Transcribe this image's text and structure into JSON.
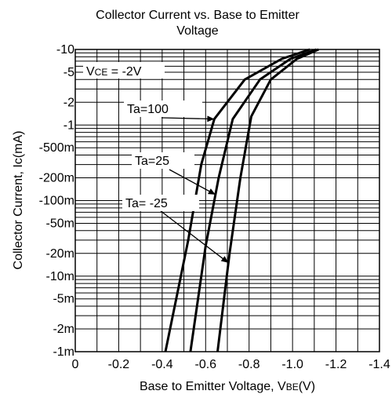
{
  "chart_data": {
    "type": "line",
    "title_lines": [
      "Collector Current vs. Base to Emitter",
      "Voltage"
    ],
    "xlabel": "Base to Emitter Voltage, V BE(V)",
    "xlabel_main": "Base to Emitter Voltage, V",
    "xlabel_sub": "BE",
    "xlabel_unit": "(V)",
    "ylabel": "Collector Current, Ic(mA)",
    "x_ticks": [
      {
        "v": 0,
        "label": "0"
      },
      {
        "v": -0.2,
        "label": "-0.2"
      },
      {
        "v": -0.4,
        "label": "-0.4"
      },
      {
        "v": -0.6,
        "label": "-0.6"
      },
      {
        "v": -0.8,
        "label": "-0.8"
      },
      {
        "v": -1.0,
        "label": "-1.0"
      },
      {
        "v": -1.2,
        "label": "-1.2"
      },
      {
        "v": -1.4,
        "label": "-1.4"
      }
    ],
    "xlim": [
      0,
      -1.4
    ],
    "y_scale": "log",
    "ylim": [
      -0.001,
      -10
    ],
    "y_ticks": [
      {
        "v": -10,
        "label": "-10"
      },
      {
        "v": -5,
        "label": "-5"
      },
      {
        "v": -2,
        "label": "-2"
      },
      {
        "v": -1,
        "label": "-1"
      },
      {
        "v": -0.5,
        "label": "-500m"
      },
      {
        "v": -0.2,
        "label": "-200m"
      },
      {
        "v": -0.1,
        "label": "-100m"
      },
      {
        "v": -0.05,
        "label": "-50m"
      },
      {
        "v": -0.02,
        "label": "-20m"
      },
      {
        "v": -0.01,
        "label": "-10m"
      },
      {
        "v": -0.005,
        "label": "-5m"
      },
      {
        "v": -0.002,
        "label": "-2m"
      },
      {
        "v": -0.001,
        "label": "-1m"
      }
    ],
    "grid": true,
    "condition": {
      "pre": "V",
      "sub": "CE",
      "post": " = -2V"
    },
    "series": [
      {
        "name": "Ta=100",
        "points": [
          [
            -0.415,
            -0.001
          ],
          [
            -0.52,
            -0.03
          ],
          [
            -0.58,
            -0.3
          ],
          [
            -0.64,
            -1.2
          ],
          [
            -0.78,
            -4
          ],
          [
            -0.95,
            -7.5
          ],
          [
            -1.08,
            -10
          ]
        ]
      },
      {
        "name": "Ta=25",
        "points": [
          [
            -0.53,
            -0.001
          ],
          [
            -0.6,
            -0.025
          ],
          [
            -0.66,
            -0.2
          ],
          [
            -0.725,
            -1.2
          ],
          [
            -0.85,
            -4
          ],
          [
            -0.99,
            -7.5
          ],
          [
            -1.11,
            -10
          ]
        ]
      },
      {
        "name": "Ta= -25",
        "points": [
          [
            -0.655,
            -0.001
          ],
          [
            -0.71,
            -0.02
          ],
          [
            -0.76,
            -0.2
          ],
          [
            -0.81,
            -1.3
          ],
          [
            -0.9,
            -4
          ],
          [
            -1.02,
            -7.5
          ],
          [
            -1.12,
            -10
          ]
        ]
      }
    ],
    "annotations": [
      {
        "label": "Ta=100",
        "series": 0,
        "at_y": -1.2
      },
      {
        "label": "Ta=25",
        "series": 1,
        "at_y": -0.12
      },
      {
        "label": "Ta= -25",
        "series": 2,
        "at_y": -0.015
      }
    ]
  }
}
